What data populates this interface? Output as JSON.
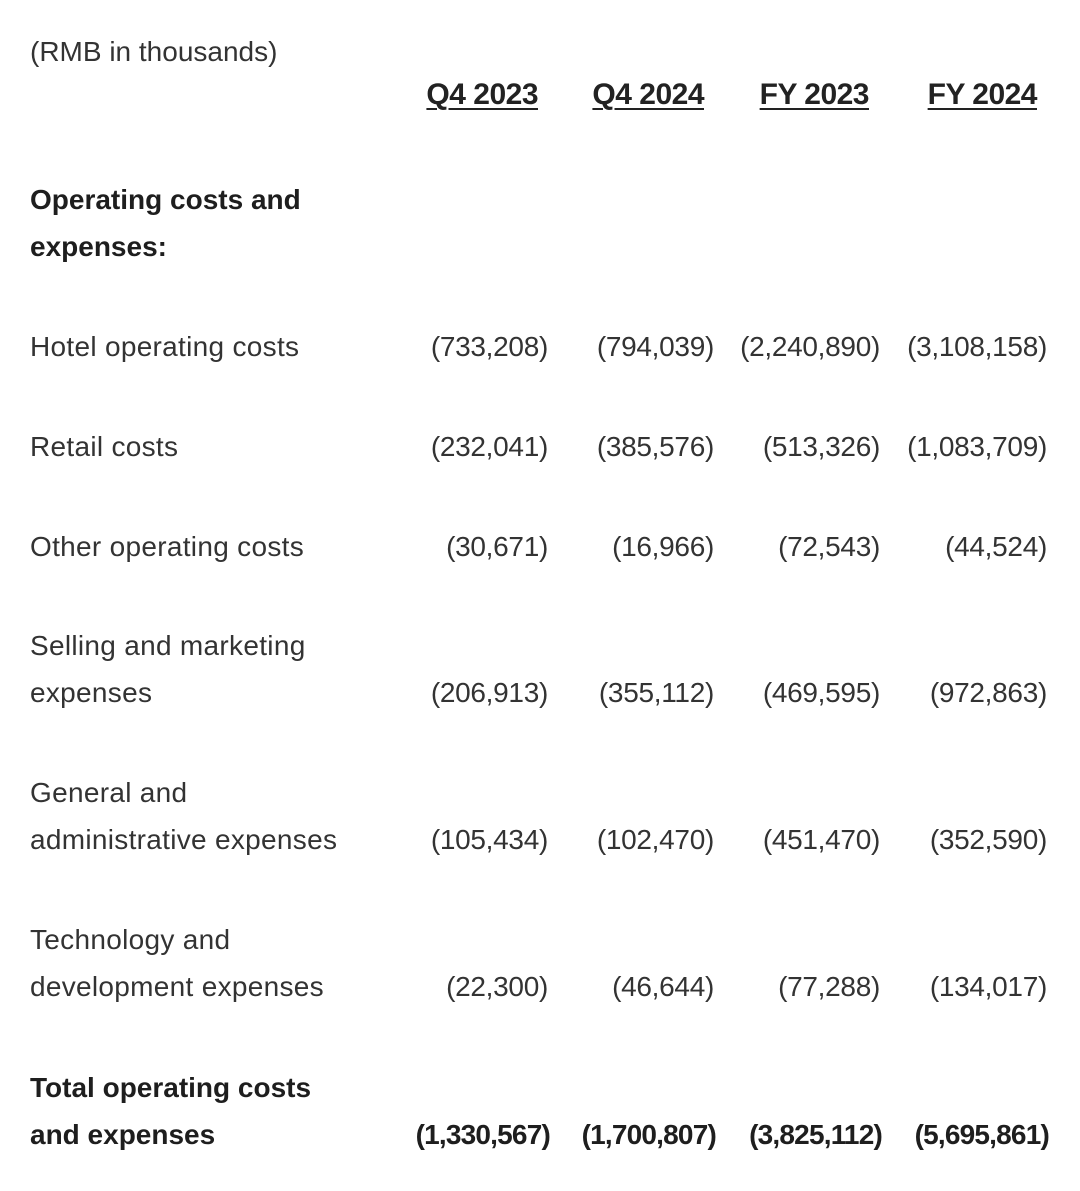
{
  "unit_note": "(RMB in thousands)",
  "columns": [
    "Q4 2023",
    "Q4 2024",
    "FY 2023",
    "FY 2024"
  ],
  "section_header": [
    "Operating costs and",
    "expenses:"
  ],
  "rows": [
    {
      "label": [
        "Hotel operating costs"
      ],
      "values": [
        "(733,208)",
        "(794,039)",
        "(2,240,890)",
        "(3,108,158)"
      ]
    },
    {
      "label": [
        "Retail costs"
      ],
      "values": [
        "(232,041)",
        "(385,576)",
        "(513,326)",
        "(1,083,709)"
      ]
    },
    {
      "label": [
        "Other operating costs"
      ],
      "values": [
        "(30,671)",
        "(16,966)",
        "(72,543)",
        "(44,524)"
      ]
    },
    {
      "label": [
        "Selling and marketing",
        "expenses"
      ],
      "values": [
        "(206,913)",
        "(355,112)",
        "(469,595)",
        "(972,863)"
      ]
    },
    {
      "label": [
        "General and",
        "administrative expenses"
      ],
      "values": [
        "(105,434)",
        "(102,470)",
        "(451,470)",
        "(352,590)"
      ]
    },
    {
      "label": [
        "Technology and",
        "development expenses"
      ],
      "values": [
        "(22,300)",
        "(46,644)",
        "(77,288)",
        "(134,017)"
      ]
    }
  ],
  "total": {
    "label": [
      "Total operating costs",
      "and expenses"
    ],
    "values": [
      "(1,330,567)",
      "(1,700,807)",
      "(3,825,112)",
      "(5,695,861)"
    ]
  }
}
